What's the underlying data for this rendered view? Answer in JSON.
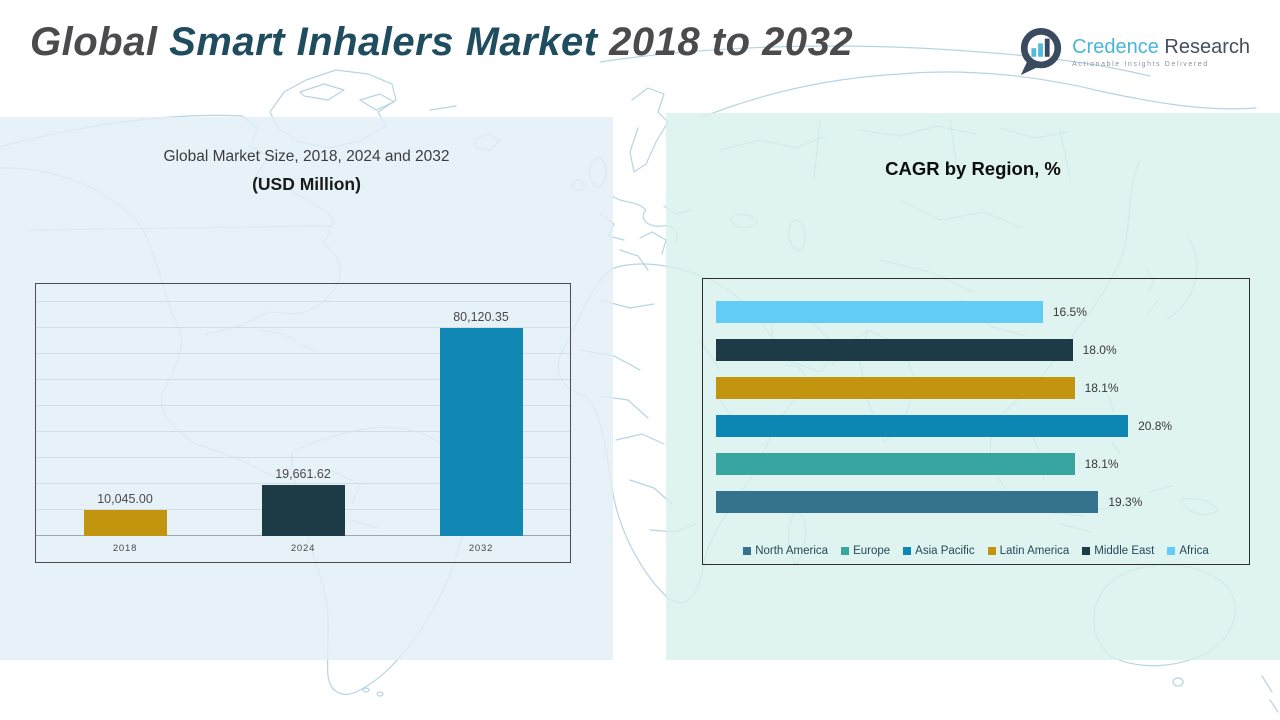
{
  "page": {
    "title_word1": "Global",
    "title_word2": "Smart Inhalers Market",
    "title_word3": "2018 to 2032"
  },
  "logo": {
    "brand_part1": "Credence",
    "brand_part2": "Research",
    "tagline": "Actionable Insights Delivered",
    "icon": "bar-chart-speech-bubble-icon",
    "colors": {
      "brand_blue": "#4ab5d8",
      "brand_dark": "#44505e",
      "bubble": "#3a4b5f"
    }
  },
  "colors": {
    "left_panel_bg": "#e9f0f7",
    "right_panel_bg": "#ddf1ee",
    "map_line": "#b2d2e2",
    "title_accent_teal": "#1f4c5e",
    "title_gray": "#4b4b4d"
  },
  "chart_data": [
    {
      "type": "bar",
      "title": "Global Market Size, 2018, 2024 and 2032",
      "subtitle": "(USD Million)",
      "categories": [
        "2018",
        "2024",
        "2032"
      ],
      "values": [
        10045.0,
        19661.62,
        80120.35
      ],
      "value_labels": [
        "10,045.00",
        "19,661.62",
        "80,120.35"
      ],
      "bar_colors": [
        "#c3940d",
        "#1d3a47",
        "#1187b3"
      ],
      "xlabel": "",
      "ylabel": "",
      "ylim": [
        0,
        90000
      ],
      "gridline_step": 10000,
      "grid": true,
      "legend_position": "none"
    },
    {
      "type": "bar",
      "orientation": "horizontal",
      "title": "CAGR by Region, %",
      "rows_top_to_bottom": [
        {
          "region": "Africa",
          "value": 16.5,
          "label": "16.5%",
          "color": "#63ccf5"
        },
        {
          "region": "Middle East",
          "value": 18.0,
          "label": "18.0%",
          "color": "#1d3a47"
        },
        {
          "region": "Latin America",
          "value": 18.1,
          "label": "18.1%",
          "color": "#c3940d"
        },
        {
          "region": "Asia Pacific",
          "value": 20.8,
          "label": "20.8%",
          "color": "#0e86b4"
        },
        {
          "region": "Europe",
          "value": 18.1,
          "label": "18.1%",
          "color": "#38a5a0"
        },
        {
          "region": "North America",
          "value": 19.3,
          "label": "19.3%",
          "color": "#35728e"
        }
      ],
      "legend": [
        {
          "label": "North America",
          "color": "#35728e"
        },
        {
          "label": "Europe",
          "color": "#38a5a0"
        },
        {
          "label": "Asia Pacific",
          "color": "#0e86b4"
        },
        {
          "label": "Latin America",
          "color": "#c3940d"
        },
        {
          "label": "Middle East",
          "color": "#1d3a47"
        },
        {
          "label": "Africa",
          "color": "#63ccf5"
        }
      ],
      "legend_position": "bottom",
      "xlim": [
        0,
        26.5
      ],
      "grid": false
    }
  ]
}
